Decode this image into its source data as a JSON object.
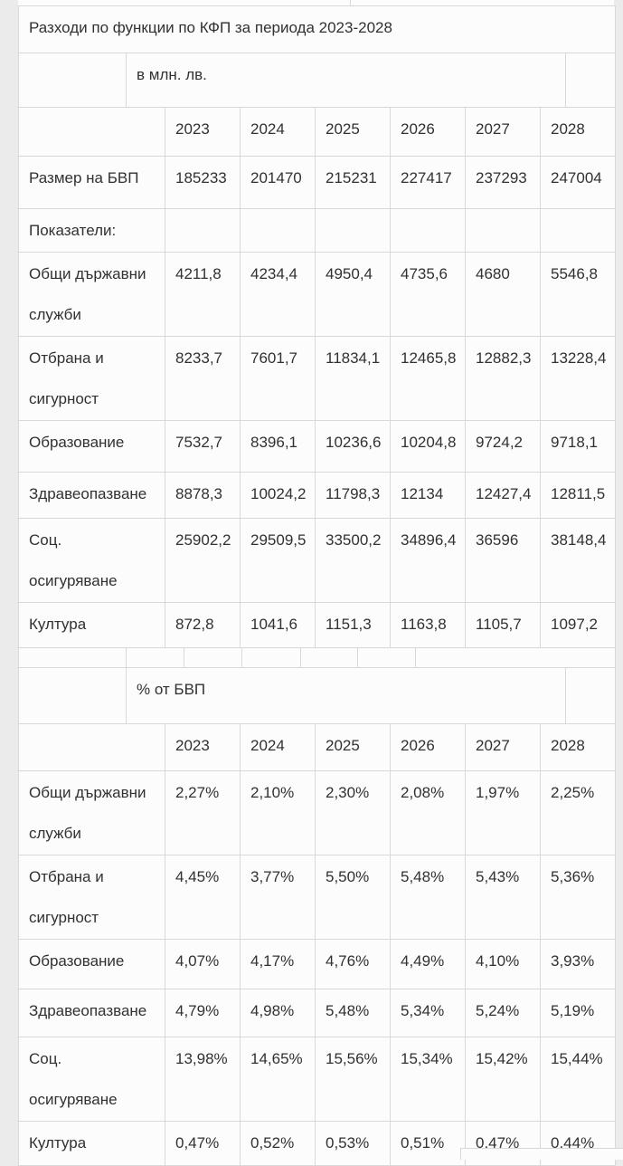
{
  "colors": {
    "page_background": "#ebebeb",
    "cell_background": "#fcfcfc",
    "border": "#d8d8d8",
    "text": "#313131"
  },
  "title": "Разходи по функции по КФП за периода 2023-2028",
  "units_label": "в млн. лв.",
  "percent_label": "% от БВП",
  "years": [
    "2023",
    "2024",
    "2025",
    "2026",
    "2027",
    "2028"
  ],
  "millions": {
    "rows": [
      {
        "label": "Размер на БВП",
        "values": [
          "185233",
          "201470",
          "215231",
          "227417",
          "237293",
          "247004"
        ]
      },
      {
        "label": "Показатели:",
        "values": [
          "",
          "",
          "",
          "",
          "",
          ""
        ]
      },
      {
        "label": "Общи държавни\nслужби",
        "values": [
          "4211,8",
          "4234,4",
          "4950,4",
          "4735,6",
          "4680",
          "5546,8"
        ]
      },
      {
        "label": "Отбрана и\nсигурност",
        "values": [
          "8233,7",
          "7601,7",
          "11834,1",
          "12465,8",
          "12882,3",
          "13228,4"
        ]
      },
      {
        "label": "Образование",
        "values": [
          "7532,7",
          "8396,1",
          "10236,6",
          "10204,8",
          "9724,2",
          "9718,1"
        ]
      },
      {
        "label": "Здравеопазване",
        "values": [
          "8878,3",
          "10024,2",
          "11798,3",
          "12134",
          "12427,4",
          "12811,5"
        ]
      },
      {
        "label": "Соц.\nосигуряване",
        "values": [
          "25902,2",
          "29509,5",
          "33500,2",
          "34896,4",
          "36596",
          "38148,4"
        ]
      },
      {
        "label": "Култура",
        "values": [
          "872,8",
          "1041,6",
          "1151,3",
          "1163,8",
          "1105,7",
          "1097,2"
        ]
      }
    ]
  },
  "percent": {
    "rows": [
      {
        "label": "Общи държавни\nслужби",
        "values": [
          "2,27%",
          "2,10%",
          "2,30%",
          "2,08%",
          "1,97%",
          "2,25%"
        ]
      },
      {
        "label": "Отбрана и\nсигурност",
        "values": [
          "4,45%",
          "3,77%",
          "5,50%",
          "5,48%",
          "5,43%",
          "5,36%"
        ]
      },
      {
        "label": "Образование",
        "values": [
          "4,07%",
          "4,17%",
          "4,76%",
          "4,49%",
          "4,10%",
          "3,93%"
        ]
      },
      {
        "label": "Здравеопазване",
        "values": [
          "4,79%",
          "4,98%",
          "5,48%",
          "5,34%",
          "5,24%",
          "5,19%"
        ]
      },
      {
        "label": "Соц.\nосигуряване",
        "values": [
          "13,98%",
          "14,65%",
          "15,56%",
          "15,34%",
          "15,42%",
          "15,44%"
        ]
      },
      {
        "label": "Култура",
        "values": [
          "0,47%",
          "0,52%",
          "0,53%",
          "0,51%",
          "0,47%",
          "0,44%"
        ]
      }
    ]
  }
}
